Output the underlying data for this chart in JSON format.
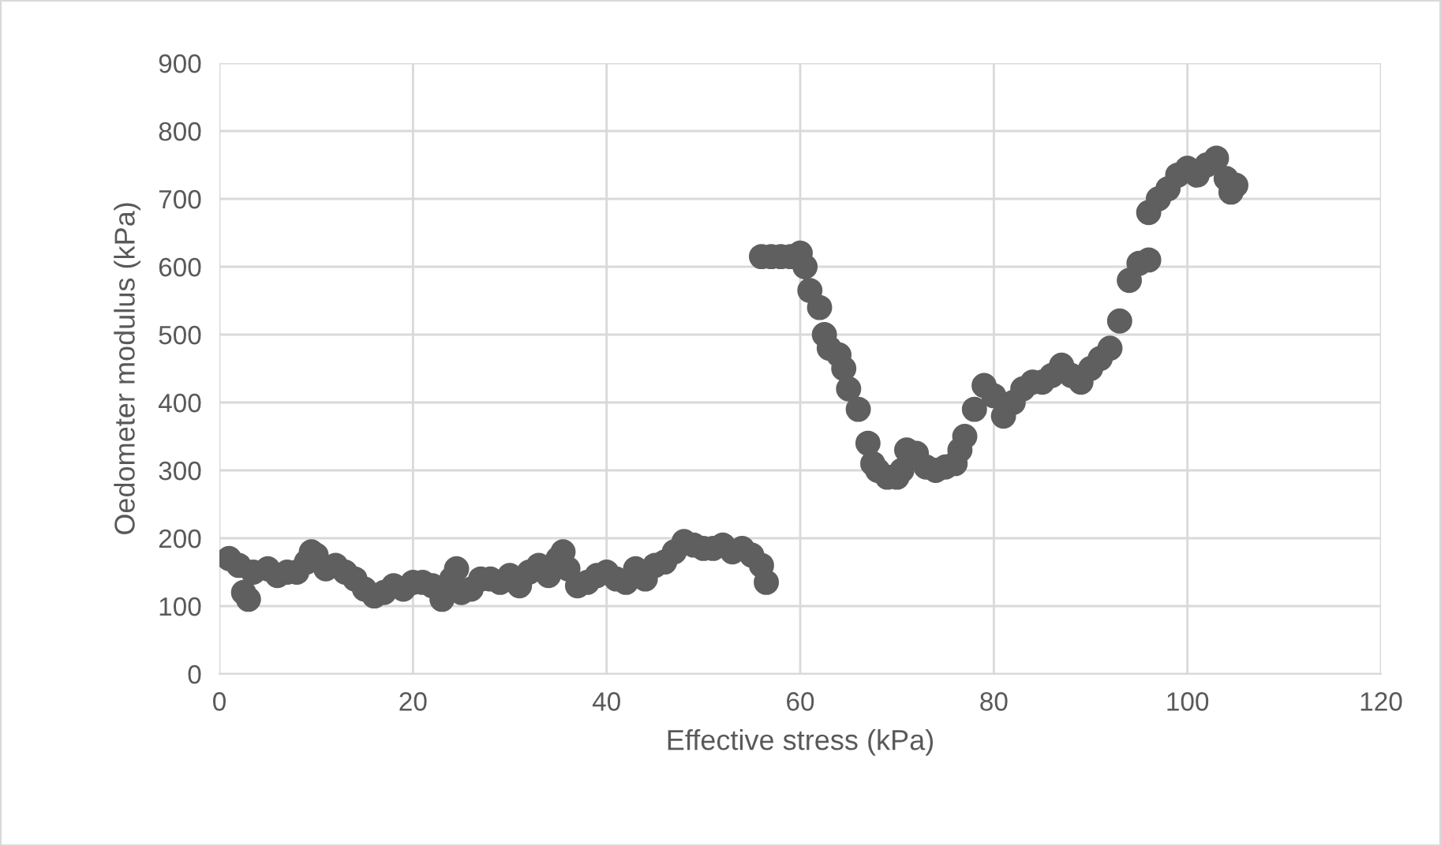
{
  "chart_data": {
    "type": "scatter",
    "xlabel": "Effective stress (kPa)",
    "ylabel": "Oedometer modulus (kPa)",
    "xlim": [
      0,
      120
    ],
    "xticks": [
      0,
      20,
      40,
      60,
      80,
      100,
      120
    ],
    "ylim": [
      0,
      900
    ],
    "yticks": [
      0,
      100,
      200,
      300,
      400,
      500,
      600,
      700,
      800,
      900
    ],
    "grid": true,
    "marker": "circle",
    "series": [
      {
        "color": "#5f5f5f",
        "x": [
          1,
          2,
          2.5,
          3,
          3.5,
          5,
          6,
          7,
          8,
          9,
          9.5,
          10,
          11,
          12,
          13,
          14,
          15,
          16,
          17,
          18,
          19,
          20,
          21,
          22,
          23,
          24,
          24.5,
          25,
          26,
          27,
          28,
          29,
          30,
          31,
          32,
          33,
          34,
          35,
          35.5,
          36,
          37,
          38,
          39,
          40,
          41,
          42,
          43,
          44,
          45,
          46,
          47,
          48,
          49,
          50,
          51,
          52,
          53,
          54,
          55,
          56,
          56.5,
          56,
          57,
          58,
          59,
          60,
          60.5,
          61,
          62,
          62.5,
          63,
          64,
          64.5,
          65,
          66,
          67,
          67.5,
          68,
          69,
          70,
          70.5,
          71,
          72,
          73,
          74,
          75,
          76,
          76.5,
          77,
          78,
          79,
          80,
          81,
          82,
          83,
          84,
          85,
          86,
          87,
          88,
          89,
          90,
          91,
          92,
          93,
          94,
          95,
          96,
          96,
          97,
          98,
          99,
          100,
          101,
          102,
          103,
          104,
          104.5,
          105
        ],
        "values": [
          170,
          160,
          120,
          110,
          150,
          155,
          145,
          150,
          150,
          165,
          180,
          175,
          155,
          160,
          150,
          140,
          125,
          115,
          120,
          130,
          125,
          135,
          135,
          130,
          110,
          140,
          155,
          120,
          125,
          140,
          140,
          135,
          145,
          130,
          150,
          160,
          145,
          170,
          180,
          155,
          130,
          135,
          145,
          150,
          140,
          135,
          155,
          140,
          160,
          165,
          180,
          195,
          190,
          185,
          185,
          190,
          180,
          185,
          175,
          160,
          135,
          615,
          615,
          615,
          615,
          620,
          600,
          565,
          540,
          500,
          480,
          470,
          450,
          420,
          390,
          340,
          310,
          300,
          290,
          290,
          300,
          330,
          325,
          305,
          300,
          305,
          310,
          330,
          350,
          390,
          425,
          410,
          380,
          400,
          420,
          430,
          430,
          440,
          455,
          440,
          430,
          450,
          465,
          480,
          520,
          580,
          605,
          610,
          680,
          700,
          715,
          735,
          745,
          735,
          750,
          760,
          730,
          710,
          720
        ]
      }
    ]
  }
}
